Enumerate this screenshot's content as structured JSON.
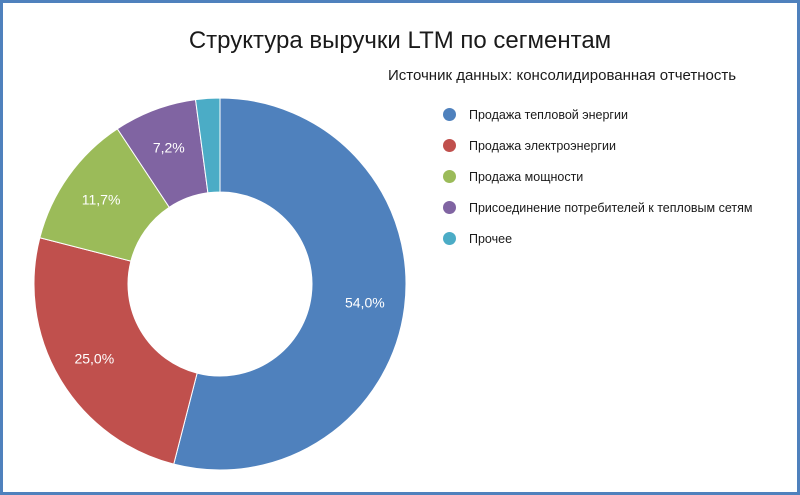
{
  "chart_data": {
    "type": "pie",
    "title": "Структура выручки LTM по сегментам",
    "subtitle": "Источник данных: консолидированная отчетность",
    "donut": true,
    "legend_position": "right",
    "categories": [
      "Продажа тепловой энергии",
      "Продажа электроэнергии",
      "Продажа мощности",
      "Присоединение потребителей к тепловым сетям",
      "Прочее"
    ],
    "values": [
      54.0,
      25.0,
      11.7,
      7.2,
      2.1
    ],
    "data_labels": [
      "54,0%",
      "25,0%",
      "11,7%",
      "7,2%",
      ""
    ],
    "colors": [
      "#4f81bd",
      "#c0504d",
      "#9bbb59",
      "#8064a2",
      "#4bacc6"
    ]
  }
}
